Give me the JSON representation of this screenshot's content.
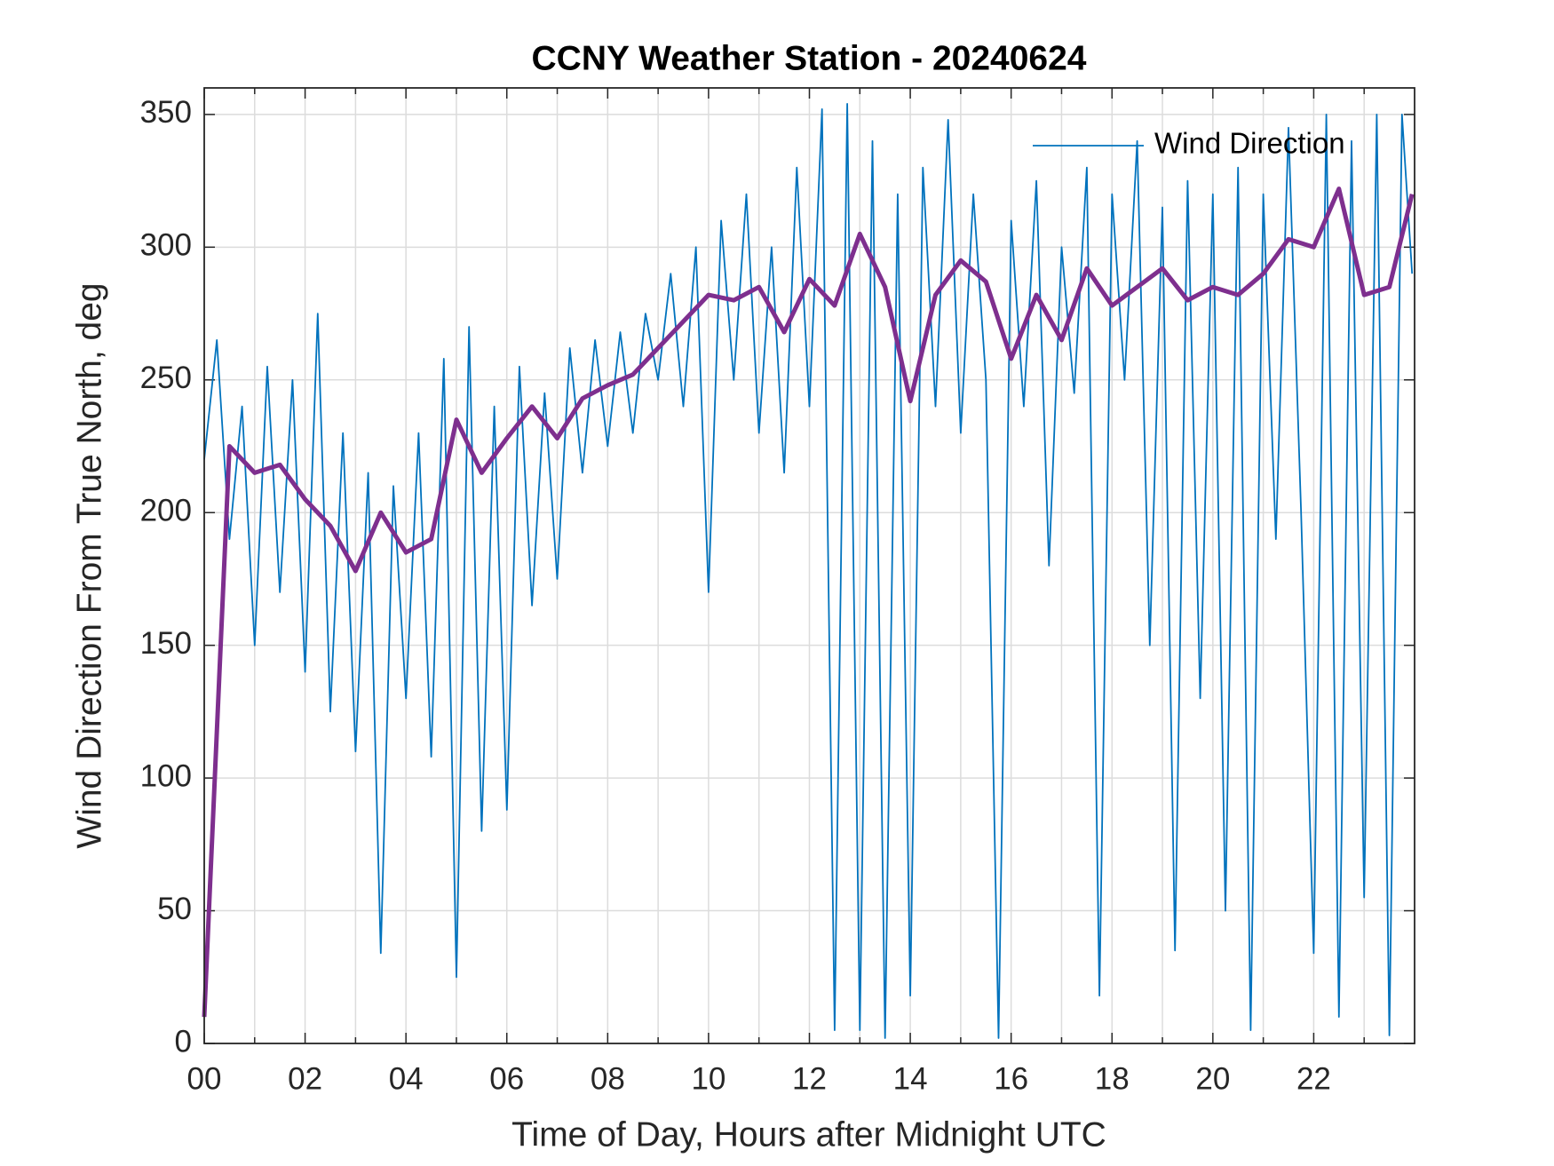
{
  "chart_data": {
    "type": "line",
    "title": "CCNY Weather Station - 20240624",
    "xlabel": "Time of Day, Hours after Midnight UTC",
    "ylabel": "Wind Direction From True North, deg",
    "xlim": [
      0,
      24
    ],
    "ylim": [
      0,
      360
    ],
    "xticks": [
      {
        "value": 0,
        "label": "00"
      },
      {
        "value": 2,
        "label": "02"
      },
      {
        "value": 4,
        "label": "04"
      },
      {
        "value": 6,
        "label": "06"
      },
      {
        "value": 8,
        "label": "08"
      },
      10,
      12,
      14,
      16,
      18,
      20,
      22
    ],
    "yticks": [
      0,
      50,
      100,
      150,
      200,
      250,
      300,
      350
    ],
    "grid": true,
    "minor_grid_x": true,
    "legend": "upper right",
    "series": [
      {
        "name": "Wind Direction",
        "color": "#0072bd",
        "x": [
          0,
          0.25,
          0.5,
          0.75,
          1,
          1.25,
          1.5,
          1.75,
          2,
          2.25,
          2.5,
          2.75,
          3,
          3.25,
          3.5,
          3.75,
          4,
          4.25,
          4.5,
          4.75,
          5,
          5.25,
          5.5,
          5.75,
          6,
          6.25,
          6.5,
          6.75,
          7,
          7.25,
          7.5,
          7.75,
          8,
          8.25,
          8.5,
          8.75,
          9,
          9.25,
          9.5,
          9.75,
          10,
          10.25,
          10.5,
          10.75,
          11,
          11.25,
          11.5,
          11.75,
          12,
          12.25,
          12.5,
          12.75,
          13,
          13.25,
          13.5,
          13.75,
          14,
          14.25,
          14.5,
          14.75,
          15,
          15.25,
          15.5,
          15.75,
          16,
          16.25,
          16.5,
          16.75,
          17,
          17.25,
          17.5,
          17.75,
          18,
          18.25,
          18.5,
          18.75,
          19,
          19.25,
          19.5,
          19.75,
          20,
          20.25,
          20.5,
          20.75,
          21,
          21.25,
          21.5,
          21.75,
          22,
          22.25,
          22.5,
          22.75,
          23,
          23.25,
          23.5,
          23.75,
          23.95
        ],
        "values": [
          220,
          265,
          190,
          240,
          150,
          255,
          170,
          250,
          140,
          275,
          125,
          230,
          110,
          215,
          34,
          210,
          130,
          230,
          108,
          258,
          25,
          270,
          80,
          240,
          88,
          255,
          165,
          245,
          175,
          262,
          215,
          265,
          225,
          268,
          230,
          275,
          250,
          290,
          240,
          300,
          170,
          310,
          250,
          320,
          230,
          300,
          215,
          330,
          240,
          352,
          5,
          354,
          5,
          340,
          2,
          320,
          18,
          330,
          240,
          348,
          230,
          320,
          250,
          2,
          310,
          240,
          325,
          180,
          300,
          245,
          330,
          18,
          320,
          250,
          340,
          150,
          315,
          35,
          325,
          130,
          320,
          50,
          330,
          5,
          320,
          190,
          345,
          200,
          34,
          350,
          10,
          340,
          55,
          350,
          3,
          350,
          290
        ]
      },
      {
        "color": "#7e2f8e",
        "x": [
          0,
          0.5,
          1,
          1.5,
          2,
          2.5,
          3,
          3.5,
          4,
          4.5,
          5,
          5.5,
          6,
          6.5,
          7,
          7.5,
          8,
          8.5,
          9,
          9.5,
          10,
          10.5,
          11,
          11.5,
          12,
          12.5,
          13,
          13.5,
          14,
          14.5,
          15,
          15.5,
          16,
          16.5,
          17,
          17.5,
          18,
          18.5,
          19,
          19.5,
          20,
          20.5,
          21,
          21.5,
          22,
          22.5,
          23,
          23.5,
          23.95
        ],
        "values": [
          10,
          225,
          215,
          218,
          205,
          195,
          178,
          200,
          185,
          190,
          235,
          215,
          228,
          240,
          228,
          243,
          248,
          252,
          262,
          272,
          282,
          280,
          285,
          268,
          288,
          278,
          305,
          285,
          242,
          282,
          295,
          287,
          258,
          282,
          265,
          292,
          278,
          285,
          292,
          280,
          285,
          282,
          290,
          303,
          300,
          322,
          282,
          285,
          320
        ]
      }
    ]
  }
}
